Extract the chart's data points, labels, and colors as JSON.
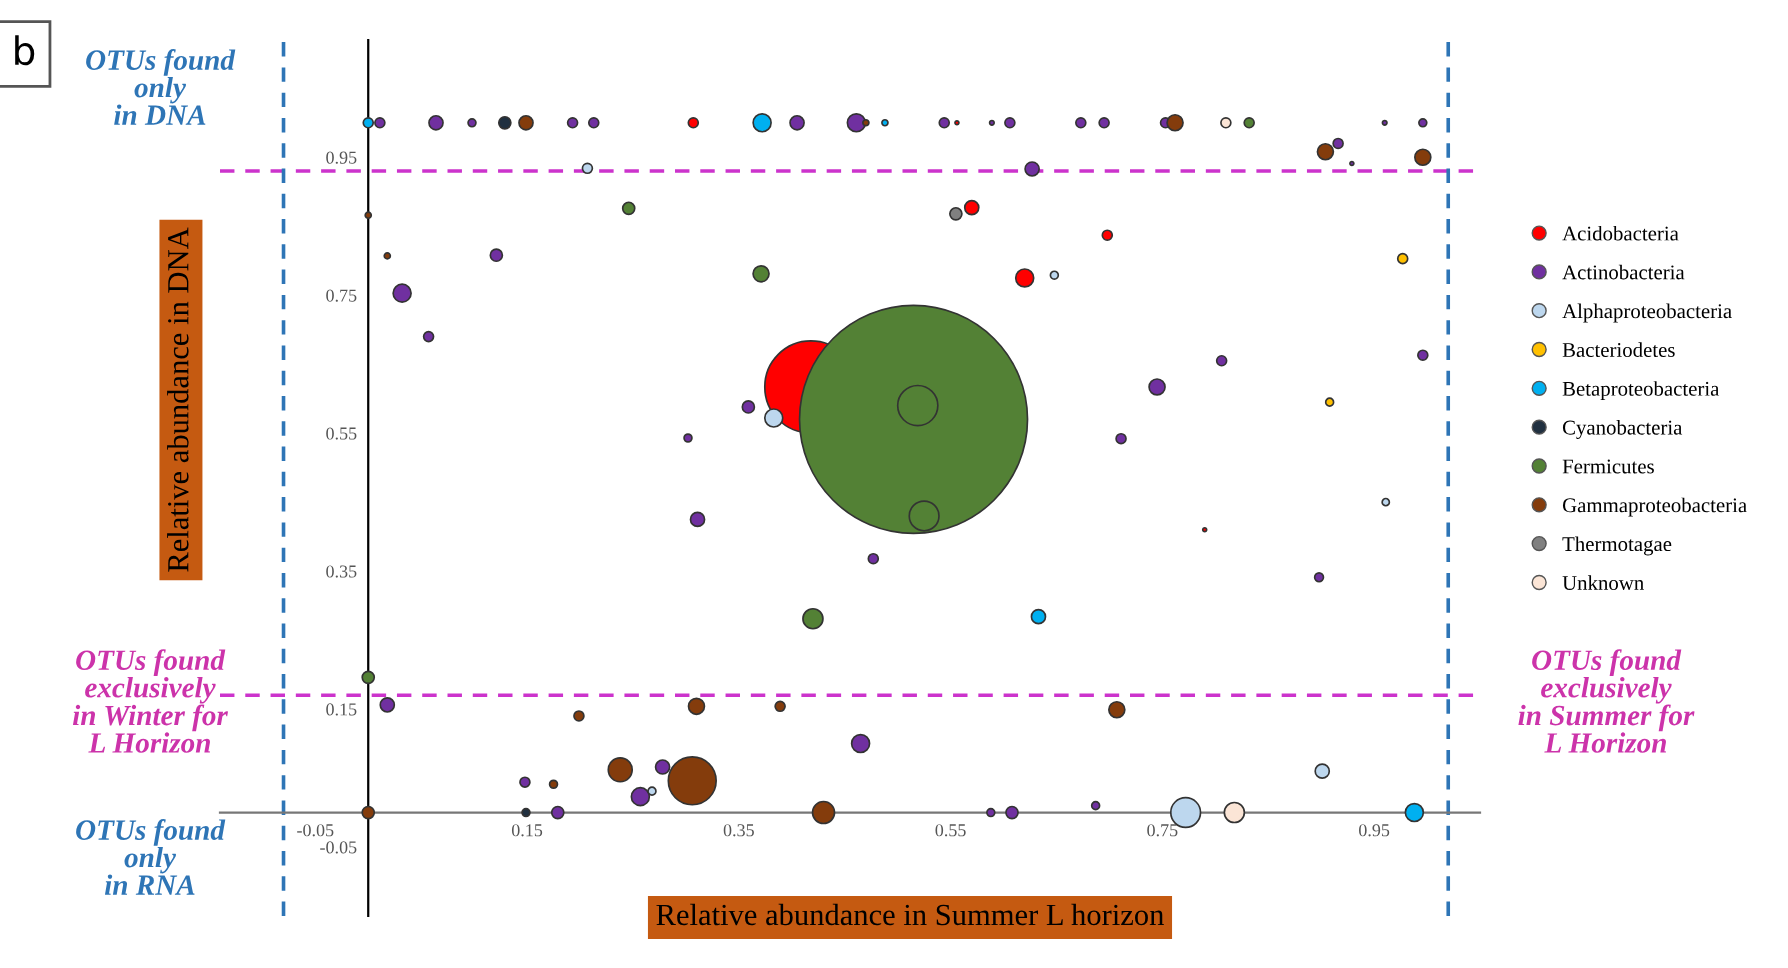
{
  "chart_data": {
    "type": "bubble",
    "xlabel": "Relative abundance in Summer L horizon",
    "ylabel": "Relative abundance in DNA",
    "xlim": [
      -0.14,
      1.05
    ],
    "ylim": [
      -0.15,
      1.12
    ],
    "xticks": [
      -0.05,
      0.15,
      0.35,
      0.55,
      0.75,
      0.95
    ],
    "yticks": [
      -0.05,
      0.15,
      0.35,
      0.55,
      0.75,
      0.95
    ],
    "grid": false,
    "legend": "right",
    "marker": "circle",
    "ref_lines": [
      {
        "axis": "y",
        "value": 0.93,
        "color": "#cc33cc",
        "line_style": "dashed"
      },
      {
        "axis": "y",
        "value": 0.17,
        "color": "#cc33cc",
        "line_style": "dashed"
      },
      {
        "axis": "x",
        "value": -0.08,
        "color": "#2e75b6",
        "line_style": "dashed"
      },
      {
        "axis": "x",
        "value": 1.02,
        "color": "#2e75b6",
        "line_style": "dashed"
      }
    ],
    "annotations": [
      "b",
      "OTUs found\nonly\nin DNA",
      "OTUs found\nexclusively\nin Winter for\nL Horizon",
      "OTUs found\nonly\nin RNA",
      "OTUs found\nexclusively\nin Summer for\nL Horizon"
    ],
    "series": [
      {
        "name": "Acidobacteria",
        "color": "#ff0000",
        "x": [
          0.307,
          0.556,
          0.57,
          0.698,
          0.62,
          0.418,
          0.79
        ],
        "values": [
          1.0,
          1.0,
          0.877,
          0.837,
          0.775,
          0.617,
          0.41
        ],
        "sizes": [
          0.0019,
          0.0003,
          0.0038,
          0.0019,
          0.0062,
          0.163,
          0.0003
        ]
      },
      {
        "name": "Actinobacteria",
        "color": "#7030a0",
        "x": [
          0.011,
          0.064,
          0.098,
          0.193,
          0.213,
          0.405,
          0.461,
          0.544,
          0.589,
          0.606,
          0.673,
          0.695,
          0.753,
          0.96,
          0.996,
          0.916,
          0.929,
          0.627,
          0.121,
          0.032,
          0.057,
          0.806,
          0.996,
          0.745,
          0.359,
          0.302,
          0.711,
          0.311,
          0.477,
          0.898,
          0.018,
          0.465,
          0.278,
          0.257,
          0.148,
          0.687,
          0.179,
          0.588,
          0.608
        ],
        "values": [
          1.0,
          1.0,
          1.0,
          1.0,
          1.0,
          1.0,
          1.0,
          1.0,
          1.0,
          1.0,
          1.0,
          1.0,
          1.0,
          1.0,
          1.0,
          0.97,
          0.941,
          0.933,
          0.808,
          0.753,
          0.69,
          0.655,
          0.663,
          0.617,
          0.588,
          0.543,
          0.542,
          0.425,
          0.368,
          0.341,
          0.156,
          0.1,
          0.066,
          0.023,
          0.044,
          0.01,
          0.0,
          0.0,
          0.0
        ],
        "sizes": [
          0.0019,
          0.0038,
          0.0012,
          0.0019,
          0.0019,
          0.0038,
          0.0062,
          0.0019,
          0.0004,
          0.0019,
          0.0019,
          0.0019,
          0.0019,
          0.0004,
          0.0012,
          0.0019,
          0.0003,
          0.0038,
          0.0028,
          0.0062,
          0.0019,
          0.0019,
          0.0019,
          0.0049,
          0.0028,
          0.0012,
          0.0019,
          0.0038,
          0.0019,
          0.0015,
          0.0038,
          0.0062,
          0.0038,
          0.0062,
          0.0019,
          0.0012,
          0.0028,
          0.0012,
          0.0028
        ]
      },
      {
        "name": "Alphaproteobacteria",
        "color": "#bdd7ee",
        "x": [
          0.207,
          0.648,
          0.383,
          0.961,
          0.268,
          0.901,
          0.772
        ],
        "values": [
          0.934,
          0.779,
          0.572,
          0.45,
          0.031,
          0.06,
          0.0
        ],
        "sizes": [
          0.0019,
          0.0012,
          0.0062,
          0.001,
          0.0012,
          0.0038,
          0.017
        ]
      },
      {
        "name": "Bacteriodetes",
        "color": "#ffc000",
        "x": [
          0.977,
          0.908
        ],
        "values": [
          0.803,
          0.595
        ],
        "sizes": [
          0.0019,
          0.0012
        ]
      },
      {
        "name": "Betaproteobacteria",
        "color": "#00b0f0",
        "x": [
          0.0,
          0.372,
          0.488,
          0.633,
          0.988
        ],
        "values": [
          1.0,
          1.0,
          1.0,
          0.284,
          0.0
        ],
        "sizes": [
          0.0019,
          0.0062,
          0.0007,
          0.0038,
          0.0062
        ]
      },
      {
        "name": "Cyanobacteria",
        "color": "#203040",
        "x": [
          0.129,
          0.149
        ],
        "values": [
          1.0,
          0.0
        ],
        "sizes": [
          0.0028,
          0.0012
        ]
      },
      {
        "name": "Fermicutes",
        "color": "#538135",
        "x": [
          0.832,
          0.246,
          0.371,
          0.515,
          0.519,
          0.525,
          0.42,
          0.0
        ],
        "values": [
          1.0,
          0.876,
          0.781,
          0.57,
          0.59,
          0.43,
          0.281,
          0.196
        ],
        "sizes": [
          0.0019,
          0.0028,
          0.0049,
          1,
          0.031,
          0.017,
          0.0077,
          0.0028
        ]
      },
      {
        "name": "Gammaproteobacteria",
        "color": "#843c0c",
        "x": [
          0.149,
          0.47,
          0.762,
          0.904,
          0.996,
          0.0,
          0.018,
          0.199,
          0.31,
          0.389,
          0.707,
          0.238,
          0.306,
          0.175,
          0.0,
          0.43
        ],
        "values": [
          1.0,
          1.0,
          1.0,
          0.958,
          0.95,
          0.866,
          0.807,
          0.14,
          0.154,
          0.154,
          0.149,
          0.062,
          0.046,
          0.041,
          0.0,
          0.0
        ],
        "sizes": [
          0.0038,
          0.0007,
          0.0049,
          0.0049,
          0.0049,
          0.0007,
          0.0007,
          0.0019,
          0.0049,
          0.0019,
          0.0049,
          0.011,
          0.044,
          0.0012,
          0.0028,
          0.0093
        ]
      },
      {
        "name": "Thermotagae",
        "color": "#808080",
        "x": [
          0.555
        ],
        "values": [
          0.868
        ],
        "sizes": [
          0.0028
        ]
      },
      {
        "name": "Unknown",
        "color": "#fbe5d6",
        "x": [
          0.81,
          0.818
        ],
        "values": [
          1.0,
          0.0
        ],
        "sizes": [
          0.0019,
          0.0077
        ]
      }
    ]
  }
}
